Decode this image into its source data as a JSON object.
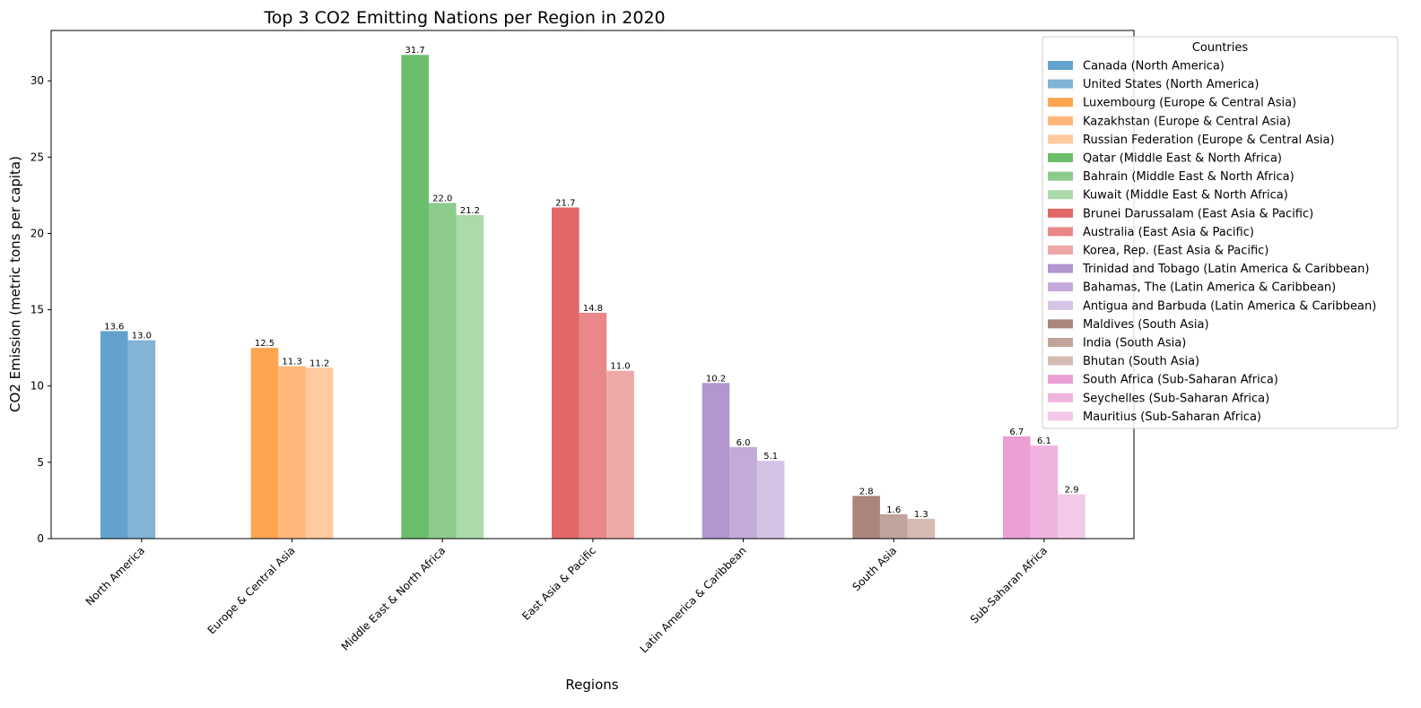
{
  "chart_data": {
    "type": "bar",
    "title": "Top 3 CO2 Emitting Nations per Region in 2020",
    "xlabel": "Regions",
    "ylabel": "CO2 Emission (metric tons per capita)",
    "ylim": [
      0,
      33.3
    ],
    "yticks": [
      0,
      5,
      10,
      15,
      20,
      25,
      30
    ],
    "grid": false,
    "legend_title": "Countries",
    "legend_position": "upper-right-outside",
    "categories": [
      "North America",
      "Europe & Central Asia",
      "Middle East & North Africa",
      "East Asia & Pacific",
      "Latin America & Caribbean",
      "South Asia",
      "Sub-Saharan Africa"
    ],
    "regions": [
      {
        "name": "North America",
        "countries": [
          {
            "label": "Canada (North America)",
            "value": 13.6,
            "value_label": "13.6",
            "color": "#63a2cc"
          },
          {
            "label": "United States (North America)",
            "value": 13.0,
            "value_label": "13.0",
            "color": "#82b4d6"
          }
        ]
      },
      {
        "name": "Europe & Central Asia",
        "countries": [
          {
            "label": "Luxembourg (Europe & Central Asia)",
            "value": 12.5,
            "value_label": "12.5",
            "color": "#ffa552"
          },
          {
            "label": "Kazakhstan (Europe & Central Asia)",
            "value": 11.3,
            "value_label": "11.3",
            "color": "#ffb77a"
          },
          {
            "label": "Russian Federation (Europe & Central Asia)",
            "value": 11.2,
            "value_label": "11.2",
            "color": "#ffca9e"
          }
        ]
      },
      {
        "name": "Middle East & North Africa",
        "countries": [
          {
            "label": "Qatar (Middle East & North Africa)",
            "value": 31.7,
            "value_label": "31.7",
            "color": "#6bbe6b"
          },
          {
            "label": "Bahrain (Middle East & North Africa)",
            "value": 22.0,
            "value_label": "22.0",
            "color": "#8ccb8c"
          },
          {
            "label": "Kuwait (Middle East & North Africa)",
            "value": 21.2,
            "value_label": "21.2",
            "color": "#abdaab"
          }
        ]
      },
      {
        "name": "East Asia & Pacific",
        "countries": [
          {
            "label": "Brunei Darussalam (East Asia & Pacific)",
            "value": 21.7,
            "value_label": "21.7",
            "color": "#e26767"
          },
          {
            "label": "Australia (East Asia & Pacific)",
            "value": 14.8,
            "value_label": "14.8",
            "color": "#e98888"
          },
          {
            "label": "Korea, Rep. (East Asia & Pacific)",
            "value": 11.0,
            "value_label": "11.0",
            "color": "#eea8a8"
          }
        ]
      },
      {
        "name": "Latin America & Caribbean",
        "countries": [
          {
            "label": "Trinidad and Tobago (Latin America & Caribbean)",
            "value": 10.2,
            "value_label": "10.2",
            "color": "#b196cf"
          },
          {
            "label": "Bahamas, The (Latin America & Caribbean)",
            "value": 6.0,
            "value_label": "6.0",
            "color": "#c3aadb"
          },
          {
            "label": "Antigua and Barbuda (Latin America & Caribbean)",
            "value": 5.1,
            "value_label": "5.1",
            "color": "#d4c3e5"
          }
        ]
      },
      {
        "name": "South Asia",
        "countries": [
          {
            "label": "Maldives (South Asia)",
            "value": 2.8,
            "value_label": "2.8",
            "color": "#ab857c"
          },
          {
            "label": "India (South Asia)",
            "value": 1.6,
            "value_label": "1.6",
            "color": "#c1a49c"
          },
          {
            "label": "Bhutan (South Asia)",
            "value": 1.3,
            "value_label": "1.3",
            "color": "#d4bcb5"
          }
        ]
      },
      {
        "name": "Sub-Saharan Africa",
        "countries": [
          {
            "label": "South Africa (Sub-Saharan Africa)",
            "value": 6.7,
            "value_label": "6.7",
            "color": "#eb9fd3"
          },
          {
            "label": "Seychelles (Sub-Saharan Africa)",
            "value": 6.1,
            "value_label": "6.1",
            "color": "#efb4dd"
          },
          {
            "label": "Mauritius (Sub-Saharan Africa)",
            "value": 2.9,
            "value_label": "2.9",
            "color": "#f4c9e7"
          }
        ]
      }
    ]
  }
}
